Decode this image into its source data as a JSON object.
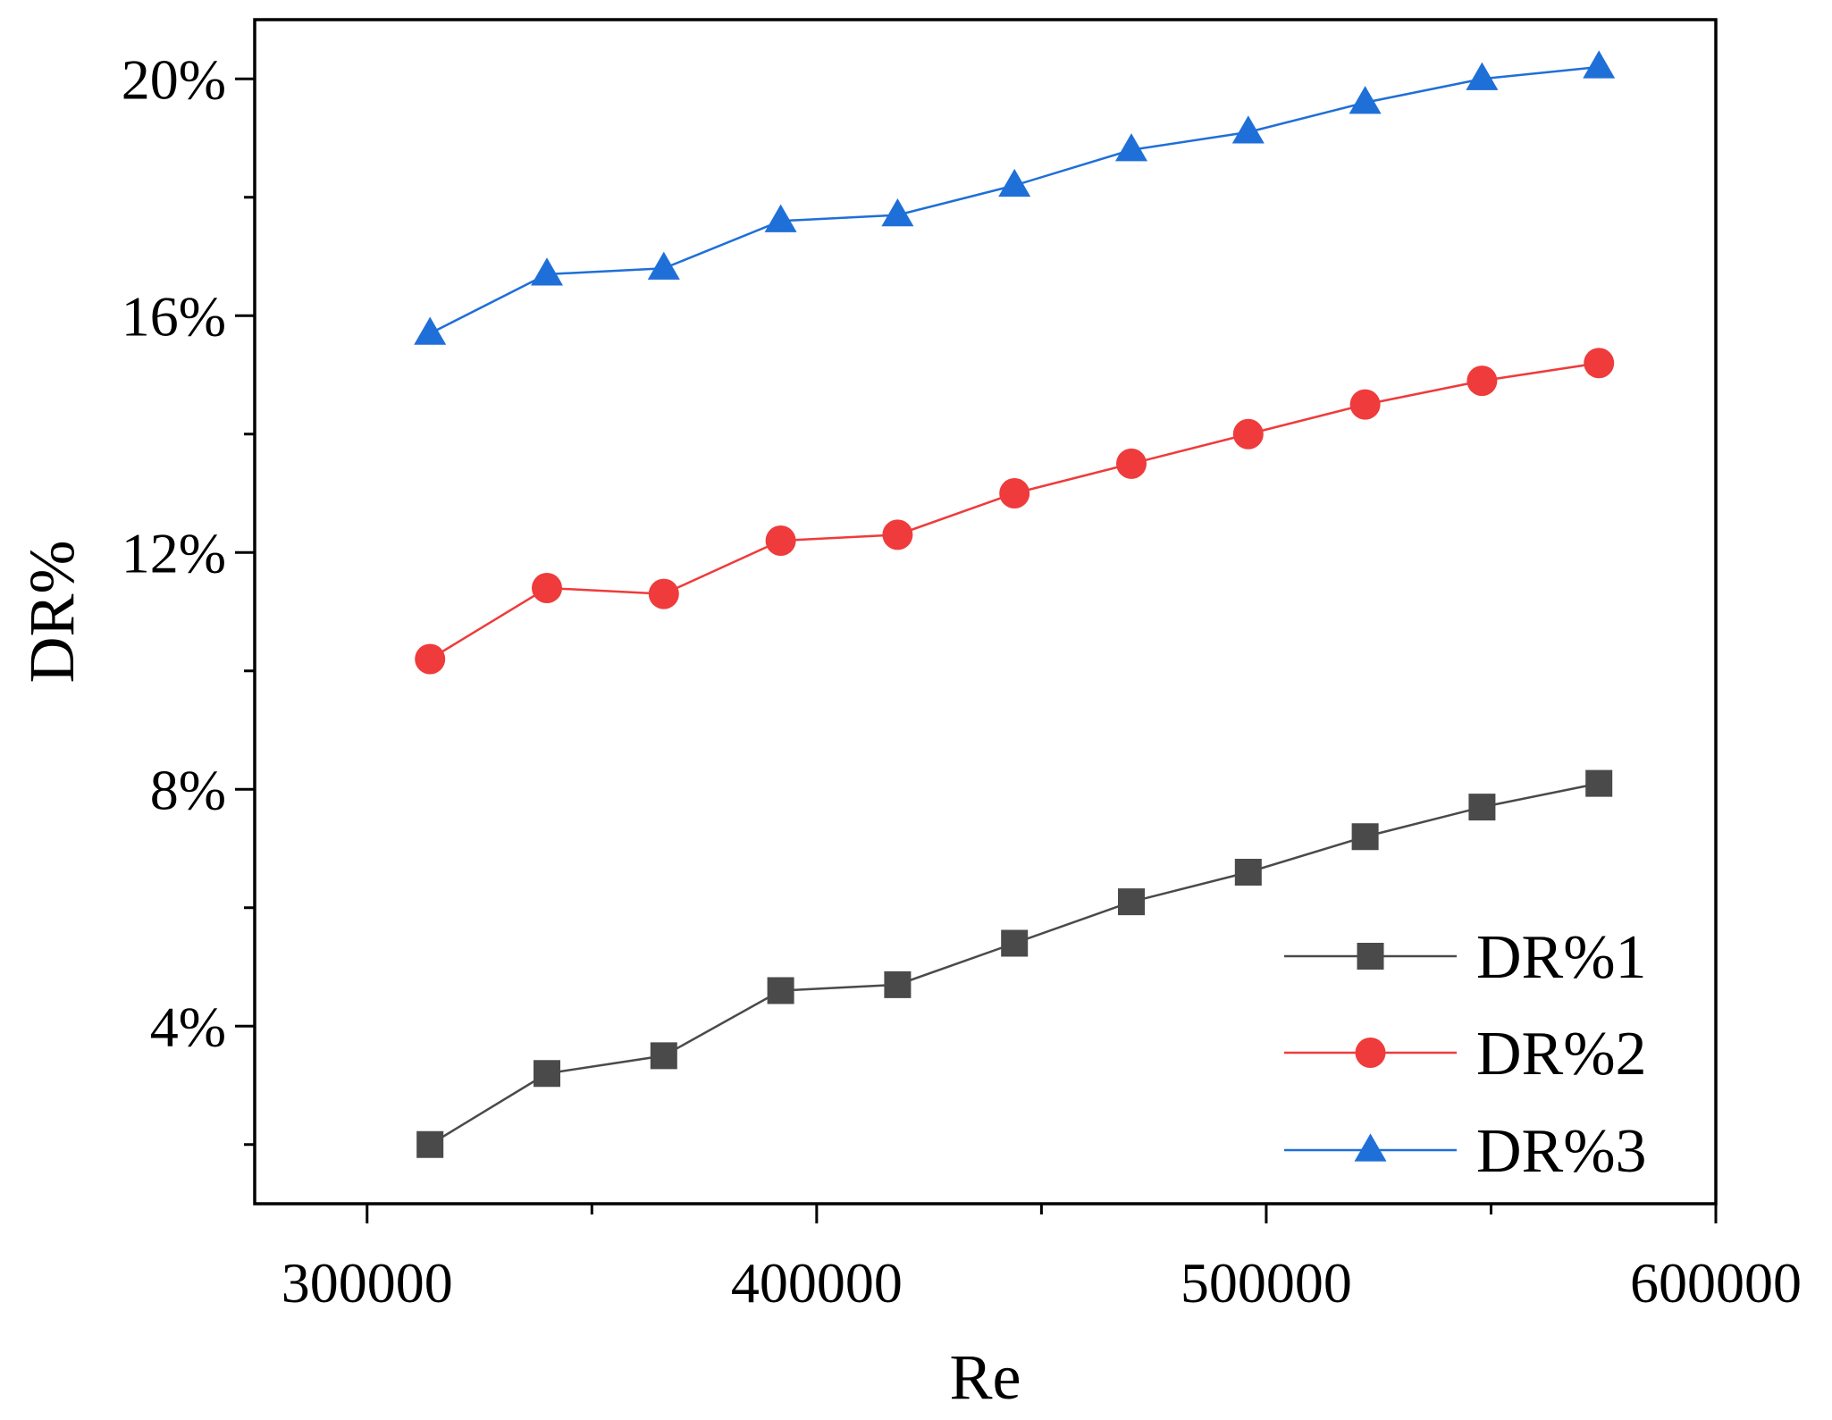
{
  "chart_data": {
    "type": "line",
    "title": "",
    "xlabel": "Re",
    "ylabel": "DR%",
    "xlim": [
      275000,
      600000
    ],
    "ylim": [
      1.0,
      21.0
    ],
    "x_ticks": [
      300000,
      400000,
      500000,
      600000
    ],
    "x_tick_labels": [
      "300000",
      "400000",
      "500000",
      "600000"
    ],
    "y_ticks": [
      4,
      8,
      12,
      16,
      20
    ],
    "y_tick_labels": [
      "4%",
      "8%",
      "12%",
      "16%",
      "20%"
    ],
    "x": [
      314000,
      340000,
      366000,
      392000,
      418000,
      444000,
      470000,
      496000,
      522000,
      548000,
      574000
    ],
    "series": [
      {
        "name": "DR%1",
        "color": "#4a4a4a",
        "marker": "square",
        "values": [
          2.0,
          3.2,
          3.5,
          4.6,
          4.7,
          5.4,
          6.1,
          6.6,
          7.2,
          7.7,
          8.1
        ]
      },
      {
        "name": "DR%2",
        "color": "#ef3b3b",
        "marker": "circle",
        "values": [
          10.2,
          11.4,
          11.3,
          12.2,
          12.3,
          13.0,
          13.5,
          14.0,
          14.5,
          14.9,
          15.2
        ]
      },
      {
        "name": "DR%3",
        "color": "#1f6fd8",
        "marker": "triangle",
        "values": [
          15.7,
          16.7,
          16.8,
          17.6,
          17.7,
          18.2,
          18.8,
          19.1,
          19.6,
          20.0,
          20.2
        ]
      }
    ],
    "legend": {
      "position": "bottom-right"
    },
    "grid": false
  }
}
